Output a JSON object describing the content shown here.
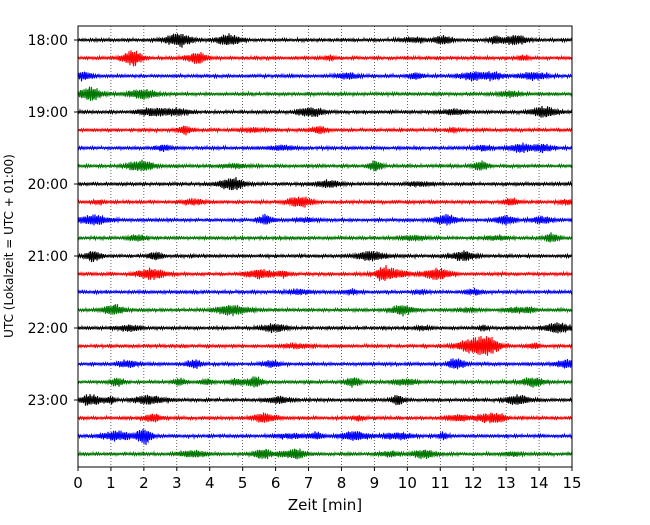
{
  "chart_data": {
    "type": "line",
    "title": "",
    "xlabel": "Zeit  [min]",
    "ylabel": "UTC (Lokalzeit = UTC + 01:00)",
    "xlim": [
      0,
      15
    ],
    "x_ticks": [
      0,
      1,
      2,
      3,
      4,
      5,
      6,
      7,
      8,
      9,
      10,
      11,
      12,
      13,
      14,
      15
    ],
    "row_interval_min": 15,
    "trace_count": 24,
    "y_tick_labels": [
      "18:00",
      "19:00",
      "20:00",
      "21:00",
      "22:00",
      "23:00"
    ],
    "y_tick_rows": [
      0,
      4,
      8,
      12,
      16,
      20
    ],
    "trace_colors": [
      "#000000",
      "#ff0000",
      "#0000ff",
      "#007700"
    ],
    "grid": true
  }
}
